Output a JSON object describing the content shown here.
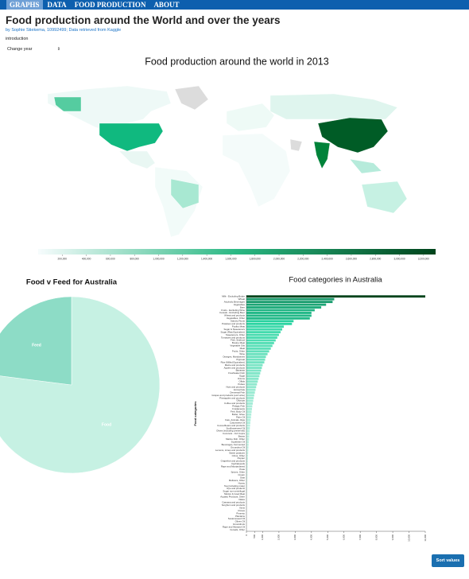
{
  "nav": [
    "GRAPHS",
    "DATA",
    "FOOD PRODUCTION",
    "ABOUT"
  ],
  "header": {
    "title": "Food production around the World and over the years",
    "subtitle": "by Sophie Stiekema, 10992499; Data retrieved from Kaggle",
    "intro": "introduction"
  },
  "select": {
    "label": "Change year"
  },
  "button": "Sort values",
  "chart_data": [
    {
      "type": "choropleth",
      "title": "Food production around the world in 2013",
      "color_range": [
        "#f7fcfd",
        "#2ab883",
        "#00441b"
      ],
      "xlim": [
        0,
        3300000
      ],
      "xticks": [
        {
          "value": 200000,
          "label": "200,000"
        },
        {
          "value": 400000,
          "label": "400,000"
        },
        {
          "value": 600000,
          "label": "600,000"
        },
        {
          "value": 800000,
          "label": "800,000"
        },
        {
          "value": 1000000,
          "label": "1,000,000"
        },
        {
          "value": 1200000,
          "label": "1,200,000"
        },
        {
          "value": 1400000,
          "label": "1,400,000"
        },
        {
          "value": 1600000,
          "label": "1,600,000"
        },
        {
          "value": 1800000,
          "label": "1,800,000"
        },
        {
          "value": 2000000,
          "label": "2,000,000"
        },
        {
          "value": 2200000,
          "label": "2,200,000"
        },
        {
          "value": 2400000,
          "label": "2,400,000"
        },
        {
          "value": 2600000,
          "label": "2,600,000"
        },
        {
          "value": 2800000,
          "label": "2,800,000"
        },
        {
          "value": 3000000,
          "label": "3,000,000"
        },
        {
          "value": 3200000,
          "label": "3,200,000"
        }
      ]
    },
    {
      "type": "pie",
      "title": "Food v Feed for Australia",
      "categories": [
        "Food",
        "Feed"
      ],
      "values": [
        77,
        23
      ],
      "colors": [
        "#c6f1e3",
        "#8ddcc6"
      ]
    },
    {
      "type": "barh",
      "title": "Food categories in Australia",
      "ylabel": "Food categories",
      "color_range": [
        "#eefaf6",
        "#2ad6a3",
        "#00441b"
      ],
      "categories": [
        "Milk - Excluding Butter",
        "Wheat",
        "Alcoholic Beverages",
        "Vegetables",
        "Beer",
        "Fruits - Excluding Wine",
        "Cereals - Excluding Beer",
        "Wheat and products",
        "Vegetables, Other",
        "Starchy Roots",
        "Potatoes and products",
        "Poultry Meat",
        "Sugar & Sweeteners",
        "Sugar (Raw Equivalent)",
        "Sweeteners, Other",
        "Tomatoes and products",
        "Fish, Seafood",
        "Bovine Meat",
        "Vegetable Oils",
        "Meat",
        "Fruits, Other",
        "Wine",
        "Oranges, Mandarines",
        "Pigmeat",
        "Rice (Milled Equivalent)",
        "Maize and products",
        "Apples and products",
        "Bananas",
        "Freshwater Fish",
        "Eggs",
        "Onions",
        "Offals",
        "Pulses",
        "Nuts and products",
        "Animal fats",
        "Demersal Fish",
        "Grapes and products (excl wine)",
        "Pineapples and products",
        "Oilcrops",
        "Coffee and products",
        "Pelagic Fish",
        "Crustaceans",
        "Fish, Body Oil",
        "Butter, Ghee",
        "Palm Oil",
        "Fats, Animals, Raw",
        "Cottonseed Oil",
        "Cocoa Beans and products",
        "Sunflowerseed Oil",
        "Olives (including preserved)",
        "Coconuts - Incl Copra",
        "Beans",
        "Marine Fish, Other",
        "Soyabean Oil",
        "Beverages, Fermented",
        "Groundnut Oil",
        "Lemons, Limes and products",
        "Sweet potatoes",
        "Citrus, Other",
        "Pepper",
        "Grapefruit and products",
        "Cephalopods",
        "Rape and Mustardseed",
        "Peas",
        "Spices, Other",
        "Cream",
        "Oats",
        "Molluscs, Other",
        "Honey",
        "Tea (including mate)",
        "Rye and products",
        "Sugar non-centrifugal",
        "Mutton & Goat Meat",
        "Aquatic Products, Other",
        "Dates",
        "Cassava and products",
        "Sorghum and products",
        "Yams",
        "Cloves",
        "Pimento",
        "Plantains",
        "Sesameseed Oil",
        "Olives Oil",
        "Groundnuts",
        "Rape and Mustard Oil",
        "Cereals, Other"
      ],
      "values": [
        11000,
        5400,
        5300,
        4900,
        4600,
        4200,
        4000,
        4000,
        3900,
        2900,
        2800,
        2300,
        2200,
        2100,
        2000,
        1900,
        1800,
        1700,
        1600,
        1500,
        1400,
        1300,
        1200,
        1150,
        1100,
        1000,
        950,
        900,
        850,
        800,
        750,
        700,
        650,
        600,
        560,
        520,
        480,
        450,
        420,
        390,
        360,
        340,
        320,
        300,
        280,
        260,
        240,
        225,
        210,
        195,
        180,
        170,
        160,
        150,
        140,
        130,
        120,
        110,
        100,
        95,
        90,
        85,
        80,
        75,
        70,
        65,
        60,
        55,
        50,
        45,
        40,
        36,
        32,
        28,
        25,
        22,
        20,
        18,
        16,
        14,
        12,
        10,
        8,
        6,
        4,
        2
      ],
      "xlim": [
        0,
        11000
      ],
      "xticks": [
        0,
        500,
        {
          "value": 1000,
          "label": "1,000"
        },
        {
          "value": 2000,
          "label": "2,000"
        },
        {
          "value": 3000,
          "label": "3,000"
        },
        {
          "value": 4000,
          "label": "4,000"
        },
        {
          "value": 5000,
          "label": "5,000"
        },
        {
          "value": 6000,
          "label": "6,000"
        },
        {
          "value": 7000,
          "label": "7,000"
        },
        {
          "value": 8000,
          "label": "8,000"
        },
        {
          "value": 9000,
          "label": "9,000"
        },
        {
          "value": 10000,
          "label": "10,000"
        },
        {
          "value": 11000,
          "label": "11,000"
        }
      ]
    }
  ]
}
